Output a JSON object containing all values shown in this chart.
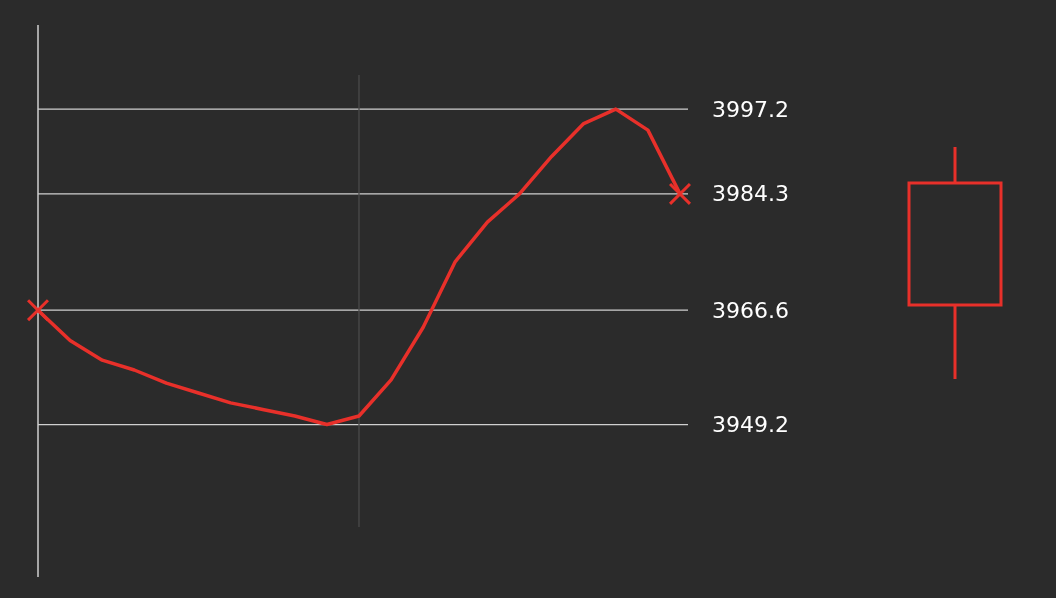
{
  "chart_data": [
    {
      "type": "line",
      "categories": [
        null,
        null,
        null,
        null,
        null,
        null,
        null,
        null,
        null,
        null,
        null,
        null,
        null,
        null,
        null,
        null,
        null,
        null,
        null,
        null,
        null
      ],
      "ylim": [
        3926,
        4010
      ],
      "yticks": [
        3949.2,
        3966.6,
        3984.3,
        3997.2
      ],
      "grid": "y",
      "tick_labels": "y",
      "line_style": "solid",
      "series": [
        {
          "color": "#e8302a",
          "values": [
            3966.6,
            3962,
            3959,
            3957.5,
            3955.5,
            3954,
            3952.5,
            3951.5,
            3950.5,
            3949.2,
            3950.5,
            3956,
            3964,
            3974,
            3980,
            3984.3,
            3990,
            3995,
            3997.2,
            3994,
            3984.3
          ]
        }
      ]
    }
  ]
}
